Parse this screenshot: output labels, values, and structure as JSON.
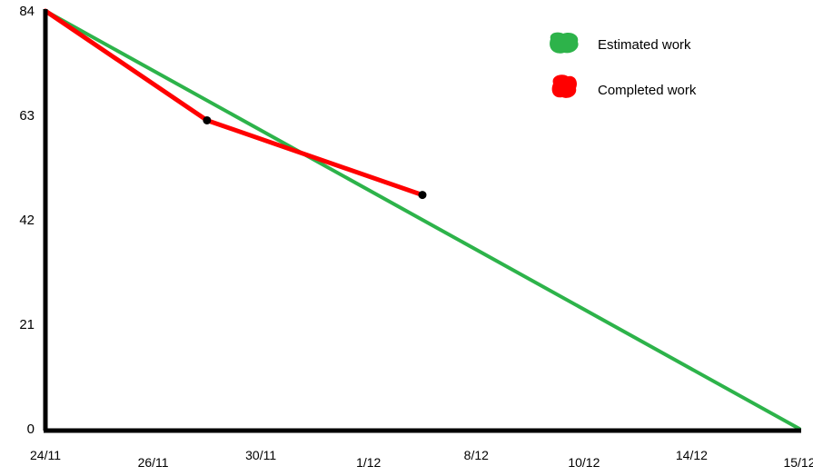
{
  "chart_data": {
    "type": "line",
    "title": "",
    "xlabel": "",
    "ylabel": "",
    "categories": [
      "24/11",
      "26/11",
      "30/11",
      "1/12",
      "8/12",
      "10/12",
      "14/12",
      "15/12"
    ],
    "y_ticks": [
      0,
      21,
      42,
      63,
      84
    ],
    "ylim": [
      0,
      84
    ],
    "grid": false,
    "legend_position": "top-right",
    "series": [
      {
        "name": "Estimated work",
        "color": "#2db34a",
        "points": [
          {
            "x": 0,
            "y": 84
          },
          {
            "x": 7,
            "y": 0
          }
        ]
      },
      {
        "name": "Completed work",
        "color": "#ff0000",
        "points": [
          {
            "x": 0,
            "y": 84
          },
          {
            "x": 1.5,
            "y": 62
          },
          {
            "x": 3.5,
            "y": 47
          }
        ]
      }
    ]
  }
}
